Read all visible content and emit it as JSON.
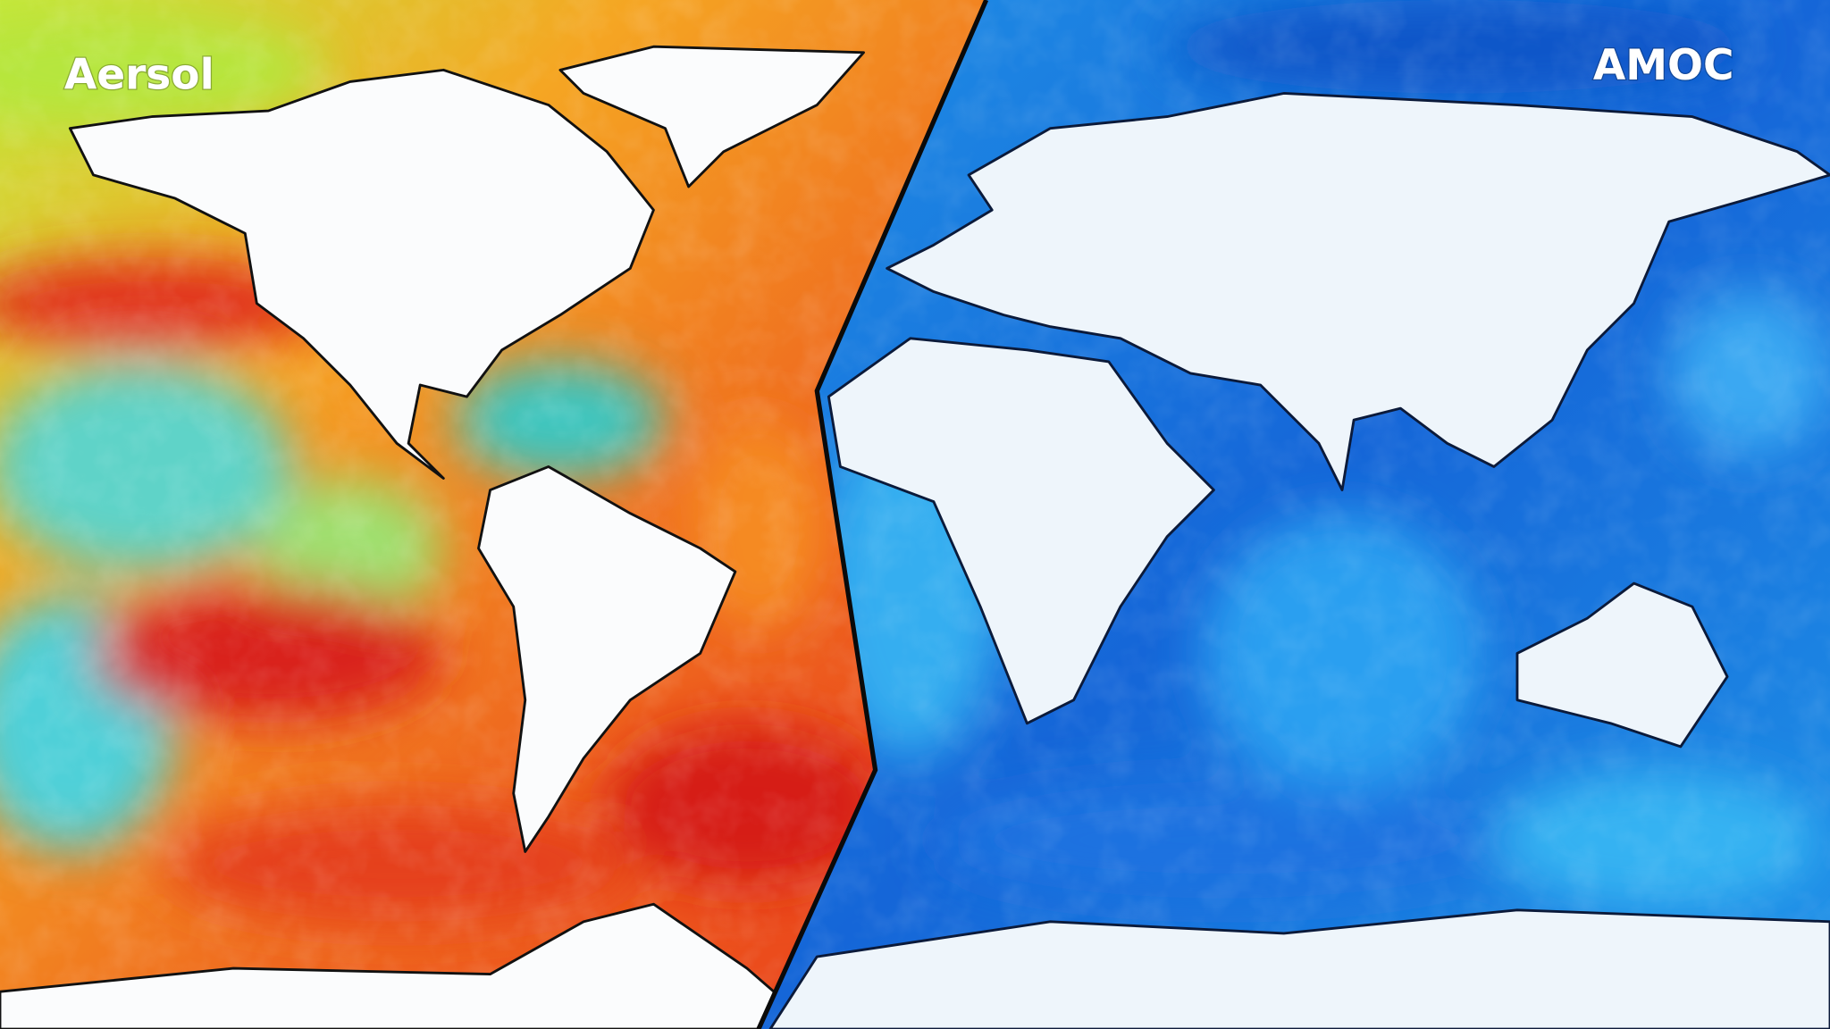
{
  "labels": {
    "left": "Aersol",
    "right": "AMOC"
  }
}
